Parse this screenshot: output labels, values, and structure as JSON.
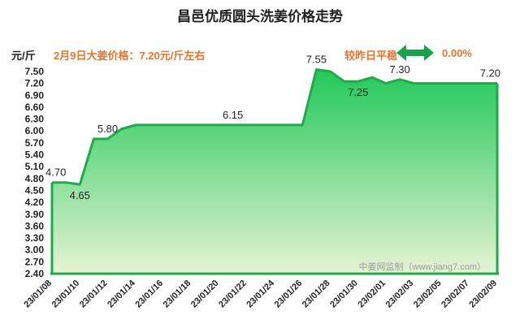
{
  "header": {
    "title": "昌邑优质圆头洗姜价格走势",
    "unit": "元/斤",
    "price_note": "2月9日大姜价格：7.20元/斤左右",
    "compare_label": "较昨日平稳",
    "compare_value": "0.00%",
    "arrow_icon": "double-arrow-icon"
  },
  "watermark": "中姜网监制（www.jiang7.com）",
  "colors": {
    "line": "#22a94a",
    "fill_top": "#22c85a",
    "fill_bottom": "#e6f3d4",
    "accent": "#e8742c",
    "arrow": "#1aa14b"
  },
  "chart_data": {
    "type": "area",
    "title": "昌邑优质圆头洗姜价格走势",
    "ylabel": "元/斤",
    "ylim": [
      2.4,
      7.5
    ],
    "yticks": [
      "7.50",
      "7.20",
      "6.90",
      "6.60",
      "6.30",
      "6.00",
      "5.70",
      "5.40",
      "5.10",
      "4.80",
      "4.50",
      "4.20",
      "3.90",
      "3.60",
      "3.30",
      "3.00",
      "2.70",
      "2.40"
    ],
    "xticks": [
      "23/01/08",
      "23/01/10",
      "23/01/12",
      "23/01/14",
      "23/01/16",
      "23/01/18",
      "23/01/20",
      "23/01/22",
      "23/01/24",
      "23/01/26",
      "23/01/28",
      "23/01/30",
      "23/02/01",
      "23/02/03",
      "23/02/05",
      "23/02/07",
      "23/02/09"
    ],
    "x": [
      "23/01/08",
      "23/01/09",
      "23/01/10",
      "23/01/11",
      "23/01/12",
      "23/01/13",
      "23/01/14",
      "23/01/15",
      "23/01/16",
      "23/01/17",
      "23/01/18",
      "23/01/19",
      "23/01/20",
      "23/01/21",
      "23/01/22",
      "23/01/23",
      "23/01/24",
      "23/01/25",
      "23/01/26",
      "23/01/27",
      "23/01/28",
      "23/01/29",
      "23/01/30",
      "23/01/31",
      "23/02/01",
      "23/02/02",
      "23/02/03",
      "23/02/04",
      "23/02/05",
      "23/02/06",
      "23/02/07",
      "23/02/08",
      "23/02/09"
    ],
    "values": [
      4.7,
      4.7,
      4.65,
      5.8,
      5.8,
      6.05,
      6.15,
      6.15,
      6.15,
      6.15,
      6.15,
      6.15,
      6.15,
      6.15,
      6.15,
      6.15,
      6.15,
      6.15,
      6.15,
      7.55,
      7.5,
      7.25,
      7.25,
      7.35,
      7.2,
      7.3,
      7.2,
      7.2,
      7.2,
      7.2,
      7.2,
      7.2,
      7.2
    ],
    "data_labels": [
      {
        "index": 0,
        "text": "4.70"
      },
      {
        "index": 2,
        "text": "4.65"
      },
      {
        "index": 4,
        "text": "5.80"
      },
      {
        "index": 13,
        "text": "6.15"
      },
      {
        "index": 19,
        "text": "7.55"
      },
      {
        "index": 22,
        "text": "7.25"
      },
      {
        "index": 25,
        "text": "7.30"
      },
      {
        "index": 32,
        "text": "7.20"
      }
    ],
    "grid": false,
    "legend": "none"
  }
}
